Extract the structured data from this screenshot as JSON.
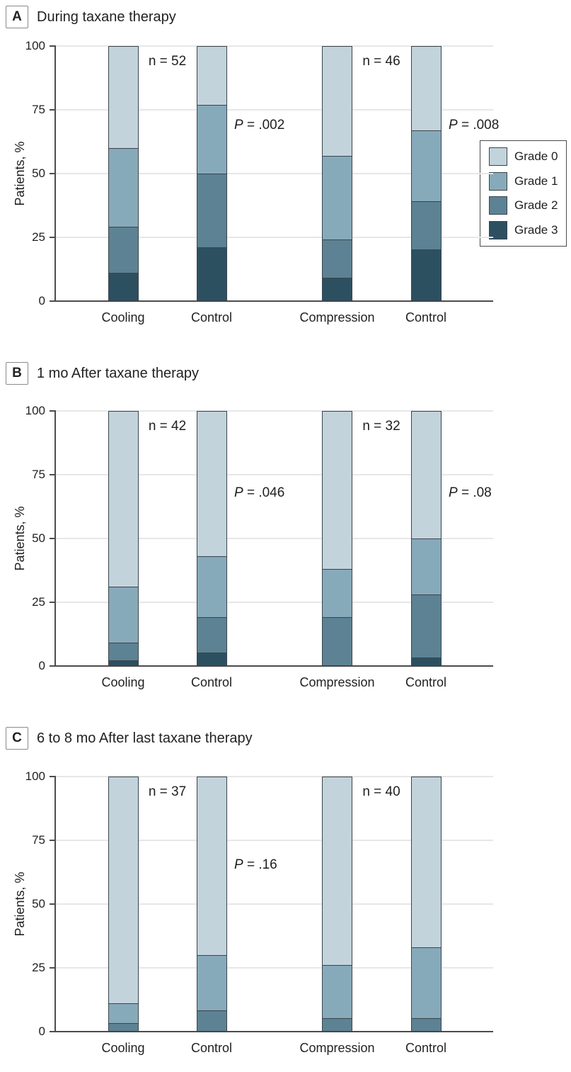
{
  "figure": {
    "ylabel": "Patients, %",
    "yticks": [
      0,
      25,
      50,
      75,
      100
    ],
    "legend": {
      "position": "top-right-of-panel-A",
      "entries": [
        {
          "label": "Grade 0",
          "color": "#c2d3db"
        },
        {
          "label": "Grade 1",
          "color": "#87aaba"
        },
        {
          "label": "Grade 2",
          "color": "#5c8293"
        },
        {
          "label": "Grade 3",
          "color": "#2d5061"
        }
      ]
    },
    "colors": {
      "segment_border": "#3a454c",
      "axis": "#4c4c4c",
      "gridline": "#e7e7e7",
      "text": "#1f1f1f"
    }
  },
  "chart_data": [
    {
      "type": "bar",
      "stacked": true,
      "panel_label": "A",
      "title": "During taxane therapy",
      "categories": [
        "Cooling",
        "Control",
        "Compression",
        "Control"
      ],
      "series": [
        {
          "name": "Grade 3",
          "values": [
            11,
            21,
            9,
            20
          ]
        },
        {
          "name": "Grade 2",
          "values": [
            18,
            29,
            15,
            19
          ]
        },
        {
          "name": "Grade 1",
          "values": [
            31,
            27,
            33,
            28
          ]
        },
        {
          "name": "Grade 0",
          "values": [
            40,
            23,
            43,
            33
          ]
        }
      ],
      "pairs": [
        {
          "n_label": "n = 52",
          "p_label": "P = .002"
        },
        {
          "n_label": "n = 46",
          "p_label": "P = .008"
        }
      ],
      "ylabel": "Patients, %",
      "ylim": [
        0,
        100
      ],
      "grid": true
    },
    {
      "type": "bar",
      "stacked": true,
      "panel_label": "B",
      "title": "1 mo After taxane therapy",
      "categories": [
        "Cooling",
        "Control",
        "Compression",
        "Control"
      ],
      "series": [
        {
          "name": "Grade 3",
          "values": [
            2,
            5,
            0,
            3
          ]
        },
        {
          "name": "Grade 2",
          "values": [
            7,
            14,
            19,
            25
          ]
        },
        {
          "name": "Grade 1",
          "values": [
            22,
            24,
            19,
            22
          ]
        },
        {
          "name": "Grade 0",
          "values": [
            69,
            57,
            62,
            50
          ]
        }
      ],
      "pairs": [
        {
          "n_label": "n = 42",
          "p_label": "P = .046"
        },
        {
          "n_label": "n = 32",
          "p_label": "P = .08"
        }
      ],
      "ylabel": "Patients, %",
      "ylim": [
        0,
        100
      ],
      "grid": true
    },
    {
      "type": "bar",
      "stacked": true,
      "panel_label": "C",
      "title": "6 to 8 mo After last taxane therapy",
      "categories": [
        "Cooling",
        "Control",
        "Compression",
        "Control"
      ],
      "series": [
        {
          "name": "Grade 3",
          "values": [
            0,
            0,
            0,
            0
          ]
        },
        {
          "name": "Grade 2",
          "values": [
            3,
            8,
            5,
            5
          ]
        },
        {
          "name": "Grade 1",
          "values": [
            8,
            22,
            21,
            28
          ]
        },
        {
          "name": "Grade 0",
          "values": [
            89,
            70,
            74,
            67
          ]
        }
      ],
      "pairs": [
        {
          "n_label": "n = 37",
          "p_label": "P = .16"
        },
        {
          "n_label": "n = 40",
          "p_label": null
        }
      ],
      "ylabel": "Patients, %",
      "ylim": [
        0,
        100
      ],
      "grid": true
    }
  ]
}
